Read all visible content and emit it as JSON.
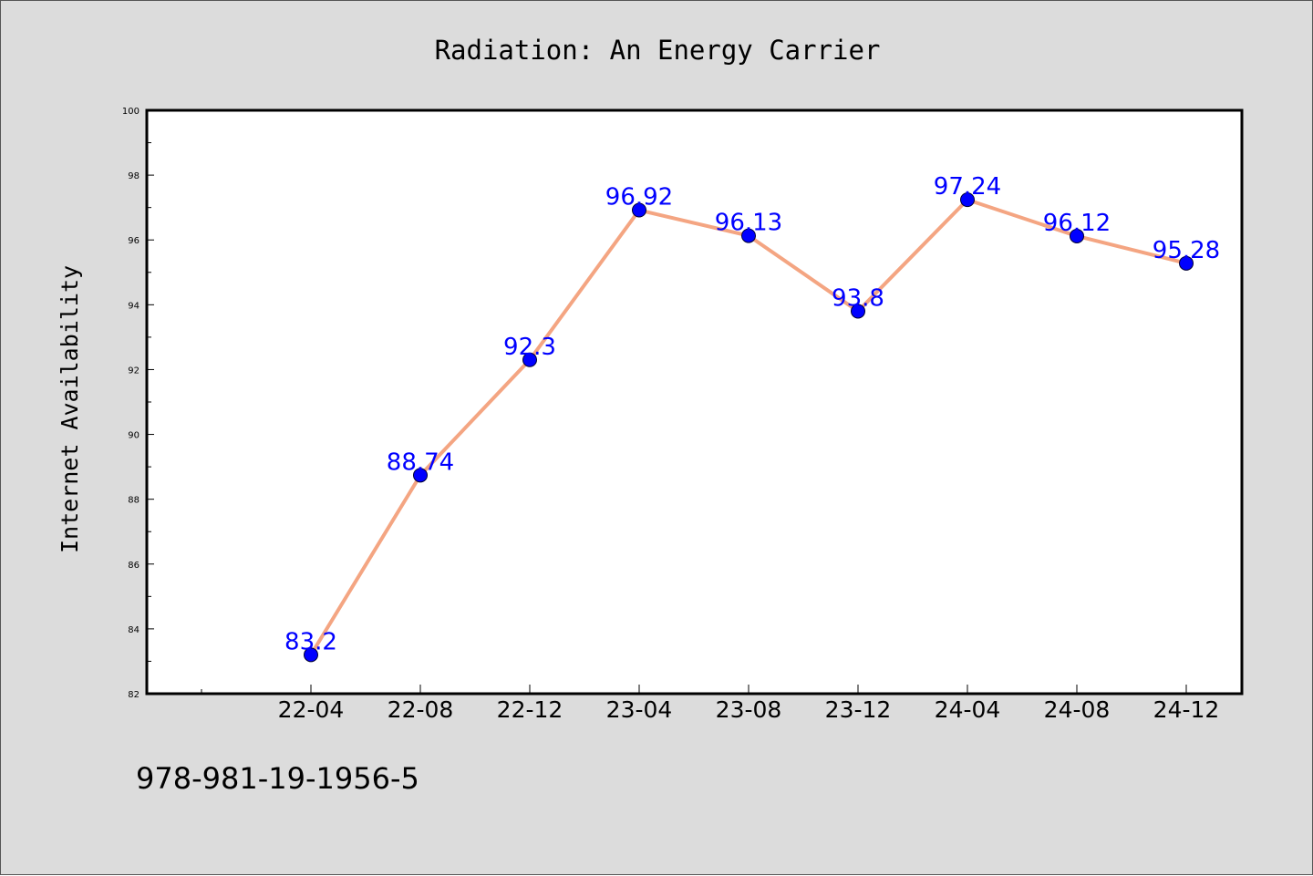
{
  "colors": {
    "background": "#dcdcdc",
    "plot_area": "#ffffff",
    "line": "#f4a582",
    "marker": "#0000ff",
    "data_label": "#0000ff"
  },
  "footer": {
    "isbn": "978-981-19-1956-5"
  },
  "chart_data": {
    "type": "line",
    "title": "Radiation: An Energy Carrier",
    "xlabel": "",
    "ylabel": "Internet Availability",
    "categories": [
      "22-04",
      "22-08",
      "22-12",
      "23-04",
      "23-08",
      "23-12",
      "24-04",
      "24-08",
      "24-12"
    ],
    "series": [
      {
        "values": [
          83.2,
          88.74,
          92.3,
          96.92,
          96.13,
          93.8,
          97.24,
          96.12,
          95.28
        ]
      }
    ],
    "data_labels": [
      "83.2",
      "88.74",
      "92.3",
      "96.92",
      "96.13",
      "93.8",
      "97.24",
      "96.12",
      "95.28"
    ],
    "ylim": [
      82,
      100
    ],
    "yticks": [
      "82",
      "84",
      "86",
      "88",
      "90",
      "92",
      "94",
      "96",
      "98",
      "100"
    ],
    "grid": false,
    "legend": "none"
  }
}
